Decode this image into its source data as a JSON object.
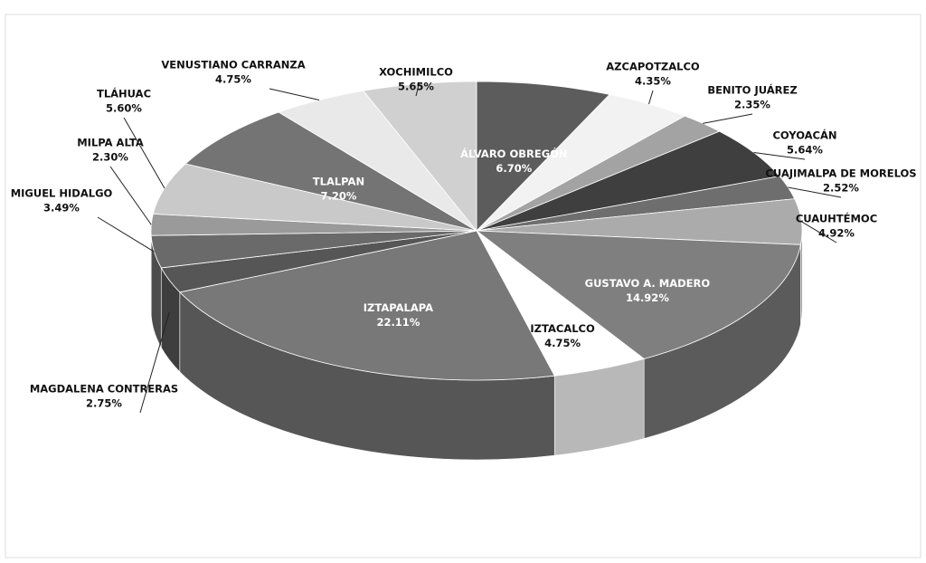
{
  "chart_data": {
    "type": "pie",
    "categories": [
      "ÁLVARO OBREGÓN",
      "AZCAPOTZALCO",
      "BENITO JUÁREZ",
      "COYOACÁN",
      "CUAJIMALPA DE MORELOS",
      "CUAUHTÉMOC",
      "GUSTAVO A. MADERO",
      "IZTACALCO",
      "IZTAPALAPA",
      "MAGDALENA CONTRERAS",
      "MIGUEL HIDALGO",
      "MILPA ALTA",
      "TLÁHUAC",
      "TLALPAN",
      "VENUSTIANO CARRANZA",
      "XOCHIMILCO"
    ],
    "values": [
      6.7,
      4.35,
      2.35,
      5.64,
      2.52,
      4.92,
      14.92,
      4.75,
      22.11,
      2.75,
      3.49,
      2.3,
      5.6,
      7.2,
      4.75,
      5.65
    ],
    "value_labels": [
      "6.70%",
      "4.35%",
      "2.35%",
      "5.64%",
      "2.52%",
      "4.92%",
      "14.92%",
      "4.75%",
      "22.11%",
      "2.75%",
      "3.49%",
      "2.30%",
      "5.60%",
      "7.20%",
      "4.75%",
      "5.65%"
    ],
    "colors": [
      "#5c5c5c",
      "#f2f2f2",
      "#a3a3a3",
      "#3f3f3f",
      "#6e6e6e",
      "#ababab",
      "#7f7f7f",
      "#ffffff",
      "#787878",
      "#565656",
      "#6a6a6a",
      "#9a9a9a",
      "#c9c9c9",
      "#747474",
      "#e9e9e9",
      "#d0d0d0"
    ]
  }
}
